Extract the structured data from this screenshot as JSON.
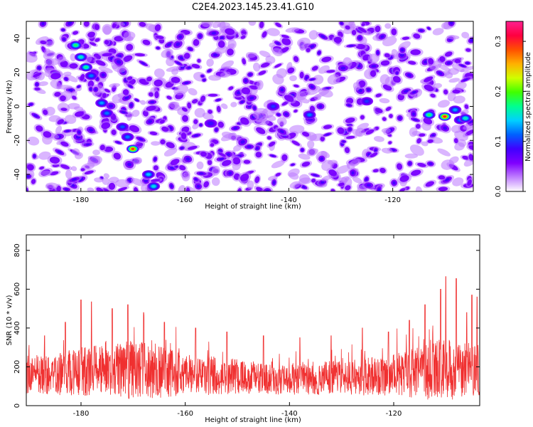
{
  "title": "C2E4.2023.145.23.41.G10",
  "chart_data": [
    {
      "type": "heatmap",
      "xlabel": "Height of straight line (km)",
      "ylabel": "Frequency (Hz)",
      "xlim": [
        -190.5,
        -104.5
      ],
      "ylim": [
        -50,
        50
      ],
      "xticks": [
        -180,
        -160,
        -140,
        -120
      ],
      "yticks": [
        -40,
        -20,
        0,
        20,
        40
      ],
      "colorbar": {
        "label": "Normalized spectral amplitude",
        "range": [
          0.0,
          0.34
        ],
        "ticks": [
          "0.0",
          "0.1",
          "0.2",
          "0.3"
        ],
        "tick_values": [
          0.0,
          0.1,
          0.2,
          0.3
        ],
        "colors": [
          "#ffffff",
          "#c080ff",
          "#8000ff",
          "#4000ff",
          "#0060ff",
          "#00d0ff",
          "#00ff90",
          "#40ff00",
          "#d0ff00",
          "#ffb000",
          "#ff5000",
          "#ff0040",
          "#ff2090"
        ]
      },
      "hotspots": [
        {
          "x": -181,
          "y": 36,
          "value": 0.18
        },
        {
          "x": -180,
          "y": 29,
          "value": 0.16
        },
        {
          "x": -179,
          "y": 23,
          "value": 0.17
        },
        {
          "x": -178,
          "y": 18,
          "value": 0.12
        },
        {
          "x": -176,
          "y": 2,
          "value": 0.13
        },
        {
          "x": -175,
          "y": -4,
          "value": 0.12
        },
        {
          "x": -172,
          "y": -12,
          "value": 0.11
        },
        {
          "x": -171,
          "y": -18,
          "value": 0.12
        },
        {
          "x": -170,
          "y": -25,
          "value": 0.29
        },
        {
          "x": -167,
          "y": -40,
          "value": 0.14
        },
        {
          "x": -166,
          "y": -47,
          "value": 0.15
        },
        {
          "x": -155,
          "y": -10,
          "value": 0.09
        },
        {
          "x": -143,
          "y": 0,
          "value": 0.1
        },
        {
          "x": -136,
          "y": -5,
          "value": 0.12
        },
        {
          "x": -125,
          "y": 3,
          "value": 0.1
        },
        {
          "x": -113,
          "y": -5,
          "value": 0.18
        },
        {
          "x": -110,
          "y": -6,
          "value": 0.3
        },
        {
          "x": -108,
          "y": -2,
          "value": 0.13
        },
        {
          "x": -107,
          "y": -8,
          "value": 0.12
        },
        {
          "x": -106,
          "y": -7,
          "value": 0.16
        }
      ]
    },
    {
      "type": "line",
      "xlabel": "Height of straight line (km)",
      "ylabel": "SNR (10 * v/v)",
      "xlim": [
        -190.5,
        -103.5
      ],
      "ylim": [
        0,
        880
      ],
      "xticks": [
        -180,
        -160,
        -140,
        -120
      ],
      "yticks": [
        0,
        200,
        400,
        600,
        800
      ],
      "color": "#f03030",
      "envelope": {
        "x": [
          -190,
          -185,
          -180,
          -175,
          -170,
          -165,
          -160,
          -155,
          -150,
          -145,
          -140,
          -135,
          -130,
          -125,
          -120,
          -115,
          -112,
          -110,
          -108,
          -106,
          -104
        ],
        "baseline": [
          160,
          165,
          175,
          180,
          185,
          180,
          165,
          155,
          150,
          145,
          140,
          140,
          145,
          150,
          160,
          175,
          180,
          185,
          180,
          185,
          190
        ],
        "spread": [
          100,
          110,
          130,
          140,
          150,
          140,
          110,
          100,
          90,
          85,
          85,
          85,
          90,
          100,
          110,
          140,
          160,
          160,
          150,
          140,
          150
        ]
      },
      "peaks": [
        {
          "x": -187,
          "y": 360
        },
        {
          "x": -183,
          "y": 430
        },
        {
          "x": -180,
          "y": 545
        },
        {
          "x": -178,
          "y": 535
        },
        {
          "x": -174,
          "y": 500
        },
        {
          "x": -171,
          "y": 520
        },
        {
          "x": -168,
          "y": 480
        },
        {
          "x": -164,
          "y": 430
        },
        {
          "x": -158,
          "y": 400
        },
        {
          "x": -152,
          "y": 380
        },
        {
          "x": -145,
          "y": 360
        },
        {
          "x": -138,
          "y": 350
        },
        {
          "x": -132,
          "y": 360
        },
        {
          "x": -126,
          "y": 400
        },
        {
          "x": -121,
          "y": 380
        },
        {
          "x": -117,
          "y": 440
        },
        {
          "x": -114,
          "y": 520
        },
        {
          "x": -111,
          "y": 600
        },
        {
          "x": -110,
          "y": 665
        },
        {
          "x": -108,
          "y": 655
        },
        {
          "x": -106,
          "y": 480
        },
        {
          "x": -105,
          "y": 570
        },
        {
          "x": -104,
          "y": 560
        }
      ]
    }
  ]
}
